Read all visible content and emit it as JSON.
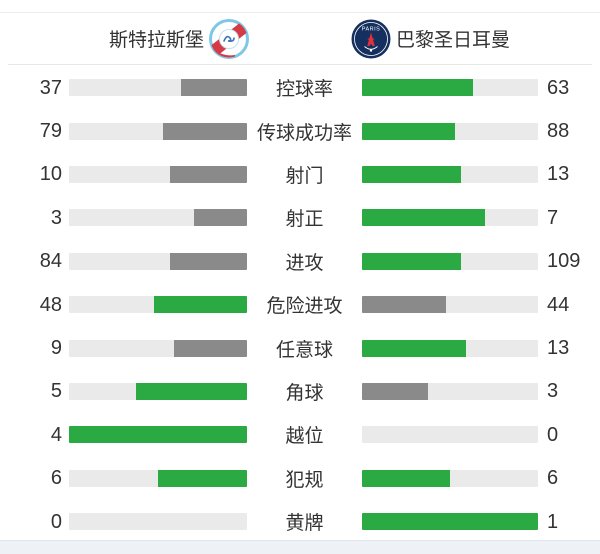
{
  "header": {
    "home_name": "斯特拉斯堡",
    "away_name": "巴黎圣日耳曼",
    "away_logo_text": "PARIS"
  },
  "colors": {
    "win_green": "#2baa43",
    "lose_gray": "#8a8a8a",
    "track_gray": "#eaeaea"
  },
  "chart_data": {
    "type": "bar",
    "orientation": "horizontal-paired-comparison",
    "categories": [
      "控球率",
      "传球成功率",
      "射门",
      "射正",
      "进攻",
      "危险进攻",
      "任意球",
      "角球",
      "越位",
      "犯规",
      "黄牌"
    ],
    "series": [
      {
        "name": "斯特拉斯堡",
        "values": [
          37,
          79,
          10,
          3,
          84,
          48,
          9,
          5,
          4,
          6,
          0
        ]
      },
      {
        "name": "巴黎圣日耳曼",
        "values": [
          63,
          88,
          13,
          7,
          109,
          44,
          13,
          3,
          0,
          6,
          1
        ]
      }
    ],
    "bar_rule": "fill width = value / (home + away) of row; higher value colored green, lower gray, tie both green, zero empty",
    "legend_position": "none",
    "grid": false
  }
}
